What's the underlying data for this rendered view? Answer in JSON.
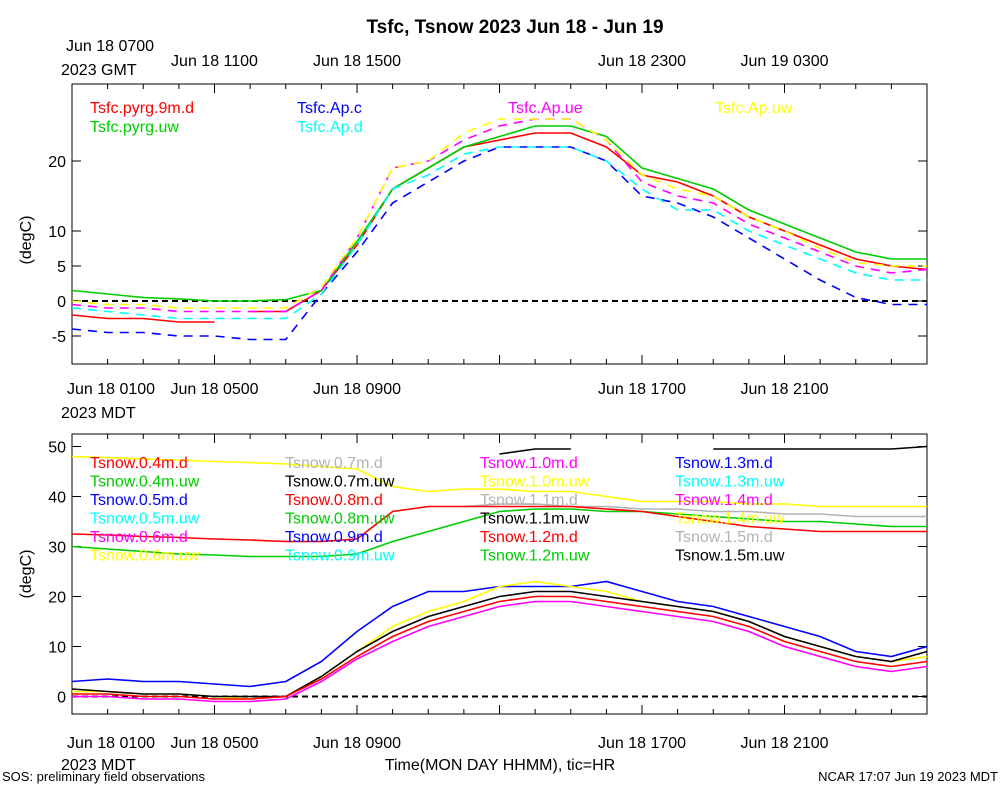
{
  "title": "Tsfc, Tsnow 2023 Jun 18 - Jun 19",
  "footer": {
    "left": "SOS: preliminary field observations",
    "right": "NCAR 17:07 Jun 19 2023 MDT",
    "xlabel": "Time(MON DAY HHMM), tic=HR"
  },
  "top_axis": {
    "first_label_line1": "Jun 18 0700",
    "first_label_line2": "2023 GMT",
    "labels": [
      "Jun 18 1100",
      "Jun 18 1500",
      "Jun 18 2300",
      "Jun 19 0300"
    ],
    "label_hours": [
      4,
      8,
      16,
      20
    ]
  },
  "bottom_axis": {
    "first_label_line1": "Jun 18 0100",
    "first_label_line2": "2023 MDT",
    "labels": [
      "Jun 18 0500",
      "Jun 18 0900",
      "Jun 18 1700",
      "Jun 18 2100"
    ],
    "label_hours": [
      4,
      8,
      16,
      20
    ]
  },
  "colors": {
    "red": "#ff0000",
    "green": "#00cc00",
    "blue": "#0000ff",
    "cyan": "#00ffff",
    "magenta": "#ff00ff",
    "yellow": "#ffff00",
    "black": "#000000",
    "gray": "#b3b3b3"
  },
  "chart_data": [
    {
      "type": "line",
      "name": "Tsfc",
      "ylabel": "(degC)",
      "xlim_hours_from_0100_MDT": [
        0,
        24
      ],
      "ylim": [
        -9,
        31
      ],
      "yticks": [
        -5,
        0,
        5,
        10,
        20
      ],
      "zero_line": 0,
      "time_hours": [
        0,
        1,
        2,
        3,
        4,
        5,
        6,
        7,
        8,
        9,
        10,
        11,
        12,
        13,
        14,
        15,
        16,
        17,
        18,
        19,
        20,
        21,
        22,
        23,
        24
      ],
      "legend": [
        {
          "name": "Tsfc.pyrg.9m.d",
          "color": "red"
        },
        {
          "name": "Tsfc.Ap.c",
          "color": "blue"
        },
        {
          "name": "Tsfc.Ap.ue",
          "color": "magenta"
        },
        {
          "name": "Tsfc.Ap.uw",
          "color": "yellow"
        },
        {
          "name": "Tsfc.pyrg.uw",
          "color": "green"
        },
        {
          "name": "Tsfc.Ap.d",
          "color": "cyan"
        }
      ],
      "series": [
        {
          "name": "Tsfc.pyrg.9m.d",
          "color": "red",
          "dash": false,
          "values": [
            -2,
            -2.5,
            -2.5,
            -3,
            -3,
            null,
            null,
            null,
            null,
            null,
            null,
            null,
            null,
            null,
            null,
            null,
            null,
            null,
            null,
            null,
            null,
            null,
            null,
            null,
            null
          ]
        },
        {
          "name": "Tsfc.pyrg.9m.d (cont.)",
          "color": "red",
          "dash": false,
          "values": [
            null,
            null,
            null,
            null,
            null,
            -1.5,
            -1.5,
            1.5,
            8,
            16,
            19,
            22,
            23,
            24,
            24,
            22,
            18,
            17,
            15,
            12,
            10,
            8,
            6,
            5,
            4.5
          ]
        },
        {
          "name": "Tsfc.pyrg.uw",
          "color": "green",
          "dash": false,
          "values": [
            1.5,
            1,
            0.5,
            0.3,
            0,
            0,
            0.2,
            1.5,
            8.5,
            16,
            19,
            22,
            23.5,
            25,
            25,
            23.5,
            19,
            17.5,
            16,
            13,
            11,
            9,
            7,
            6,
            6
          ]
        },
        {
          "name": "Tsfc.Ap.c",
          "color": "blue",
          "dash": true,
          "values": [
            -4,
            -4.5,
            -4.5,
            -5,
            -5,
            -5.5,
            -5.5,
            1,
            7,
            14,
            17,
            20,
            22,
            22,
            22,
            20,
            15,
            14,
            12,
            9,
            6,
            3,
            0.5,
            -0.5,
            -0.5
          ]
        },
        {
          "name": "Tsfc.Ap.d",
          "color": "cyan",
          "dash": true,
          "values": [
            -1,
            -1.5,
            -2,
            -2.5,
            -2.5,
            -2.5,
            -2.5,
            1,
            8,
            16,
            18,
            21,
            22,
            22,
            22,
            20,
            16,
            13,
            13,
            10,
            8,
            6,
            4,
            3,
            3
          ]
        },
        {
          "name": "Tsfc.Ap.ue",
          "color": "magenta",
          "dash": true,
          "values": [
            -0.5,
            -1,
            -1,
            -1.5,
            -1.5,
            -1.5,
            -1.5,
            1.5,
            9,
            19,
            20,
            23,
            25,
            26,
            26,
            23,
            17,
            15,
            14,
            11,
            9,
            7,
            5,
            4,
            4.5
          ]
        },
        {
          "name": "Tsfc.Ap.uw",
          "color": "yellow",
          "dash": true,
          "values": [
            0,
            -0.5,
            -0.5,
            -1,
            -1,
            -1,
            -1,
            2,
            9,
            19,
            20,
            24,
            26,
            26,
            26,
            23,
            18,
            16,
            15,
            12,
            10,
            7.5,
            5.5,
            5,
            5
          ]
        }
      ]
    },
    {
      "type": "line",
      "name": "Tsnow",
      "ylabel": "(degC)",
      "xlim_hours_from_0100_MDT": [
        0,
        24
      ],
      "ylim": [
        -3.5,
        52.5
      ],
      "yticks": [
        0,
        10,
        20,
        30,
        40,
        50
      ],
      "zero_line": 0,
      "time_hours": [
        0,
        1,
        2,
        3,
        4,
        5,
        6,
        7,
        8,
        9,
        10,
        11,
        12,
        13,
        14,
        15,
        16,
        17,
        18,
        19,
        20,
        21,
        22,
        23,
        24
      ],
      "legend": [
        {
          "name": "Tsnow.0.4m.d",
          "color": "red"
        },
        {
          "name": "Tsnow.0.7m.d",
          "color": "gray"
        },
        {
          "name": "Tsnow.1.0m.d",
          "color": "magenta"
        },
        {
          "name": "Tsnow.1.3m.d",
          "color": "blue"
        },
        {
          "name": "Tsnow.0.4m.uw",
          "color": "green"
        },
        {
          "name": "Tsnow.0.7m.uw",
          "color": "black"
        },
        {
          "name": "Tsnow.1.0m.uw",
          "color": "yellow"
        },
        {
          "name": "Tsnow.1.3m.uw",
          "color": "cyan"
        },
        {
          "name": "Tsnow.0.5m.d",
          "color": "blue"
        },
        {
          "name": "Tsnow.0.8m.d",
          "color": "red"
        },
        {
          "name": "Tsnow.1.1m.d",
          "color": "gray"
        },
        {
          "name": "Tsnow.1.4m.d",
          "color": "magenta"
        },
        {
          "name": "Tsnow.0.5m.uw",
          "color": "cyan"
        },
        {
          "name": "Tsnow.0.8m.uw",
          "color": "green"
        },
        {
          "name": "Tsnow.1.1m.uw",
          "color": "black"
        },
        {
          "name": "Tsnow.1.4m.uw",
          "color": "yellow"
        },
        {
          "name": "Tsnow.0.6m.d",
          "color": "magenta"
        },
        {
          "name": "Tsnow.0.9m.d",
          "color": "blue"
        },
        {
          "name": "Tsnow.1.2m.d",
          "color": "red"
        },
        {
          "name": "Tsnow.1.5m.d",
          "color": "gray"
        },
        {
          "name": "Tsnow.0.6m.uw",
          "color": "yellow"
        },
        {
          "name": "Tsnow.0.9m.uw",
          "color": "cyan"
        },
        {
          "name": "Tsnow.1.2m.uw",
          "color": "green"
        },
        {
          "name": "Tsnow.1.5m.uw",
          "color": "black"
        }
      ],
      "series": [
        {
          "name": "Tsnow.1.0m.uw",
          "color": "yellow",
          "values": [
            48,
            47.8,
            47.5,
            47.3,
            47,
            46.8,
            46.5,
            46,
            45.5,
            42,
            41,
            41.5,
            41.5,
            41,
            41,
            40,
            39,
            39,
            39,
            38.5,
            38.5,
            38,
            38,
            38,
            38
          ]
        },
        {
          "name": "Tsnow.1.1m.d",
          "color": "gray",
          "values": [
            null,
            null,
            null,
            null,
            null,
            null,
            null,
            null,
            null,
            null,
            null,
            38,
            38.5,
            38.5,
            38,
            38,
            37.5,
            37.5,
            37,
            37,
            36.5,
            36.5,
            36,
            36,
            36
          ]
        },
        {
          "name": "Tsnow.0.4m.uw",
          "color": "green",
          "values": [
            30,
            29.5,
            29,
            28.5,
            28.3,
            28,
            28,
            28,
            28.5,
            31,
            33,
            35,
            37,
            37.5,
            37.5,
            37,
            37,
            36.5,
            36,
            35.5,
            35,
            35,
            34.5,
            34,
            34
          ]
        },
        {
          "name": "Tsnow.0.4m.d",
          "color": "red",
          "values": [
            32.5,
            32.3,
            32,
            31.8,
            31.5,
            31.3,
            31,
            31,
            31.5,
            37,
            38,
            38,
            38,
            38,
            38,
            37.5,
            37,
            36,
            35,
            34,
            33.5,
            33,
            33,
            33,
            33
          ]
        },
        {
          "name": "Tsnow.1.5m.uw",
          "color": "black",
          "values": [
            null,
            null,
            null,
            null,
            null,
            null,
            null,
            null,
            null,
            null,
            null,
            null,
            48.5,
            49.5,
            49.5,
            null,
            null,
            null,
            49.5,
            49.5,
            49.5,
            49.5,
            49.5,
            49.5,
            50
          ]
        },
        {
          "name": "Tsnow.0.5m.d",
          "color": "blue",
          "values": [
            3,
            3.5,
            3,
            3,
            2.5,
            2,
            3,
            7,
            13,
            18,
            21,
            21,
            22,
            22,
            22,
            23,
            21,
            19,
            18,
            16,
            14,
            12,
            9,
            8,
            10
          ]
        },
        {
          "name": "Tsnow.1.0m.uw",
          "color": "yellow",
          "values": [
            1,
            1,
            0.5,
            0.5,
            0,
            -0.5,
            0,
            4,
            9,
            14,
            17,
            19,
            22,
            23,
            22,
            21,
            19,
            18,
            17,
            15,
            12,
            10,
            8,
            7,
            8
          ]
        },
        {
          "name": "Tsnow.0.7m.uw",
          "color": "black",
          "values": [
            1.5,
            1,
            0.5,
            0.5,
            0,
            0,
            0,
            4,
            9,
            13,
            16,
            18,
            20,
            21,
            21,
            20,
            19,
            18,
            17,
            15,
            12,
            10,
            8,
            7,
            9
          ]
        },
        {
          "name": "Tsnow.0.8m.d",
          "color": "red",
          "values": [
            0.5,
            0.5,
            0,
            0,
            -0.5,
            -0.5,
            0,
            3.5,
            8,
            12,
            15,
            17,
            19,
            20,
            20,
            19,
            18,
            17,
            16,
            14,
            11,
            9,
            7,
            6,
            7
          ]
        },
        {
          "name": "Tsnow.0.6m.d",
          "color": "magenta",
          "values": [
            0,
            0,
            -0.5,
            -0.5,
            -1,
            -1,
            -0.5,
            3,
            7.5,
            11,
            14,
            16,
            18,
            19,
            19,
            18,
            17,
            16,
            15,
            13,
            10,
            8,
            6,
            5,
            6
          ]
        }
      ]
    }
  ]
}
